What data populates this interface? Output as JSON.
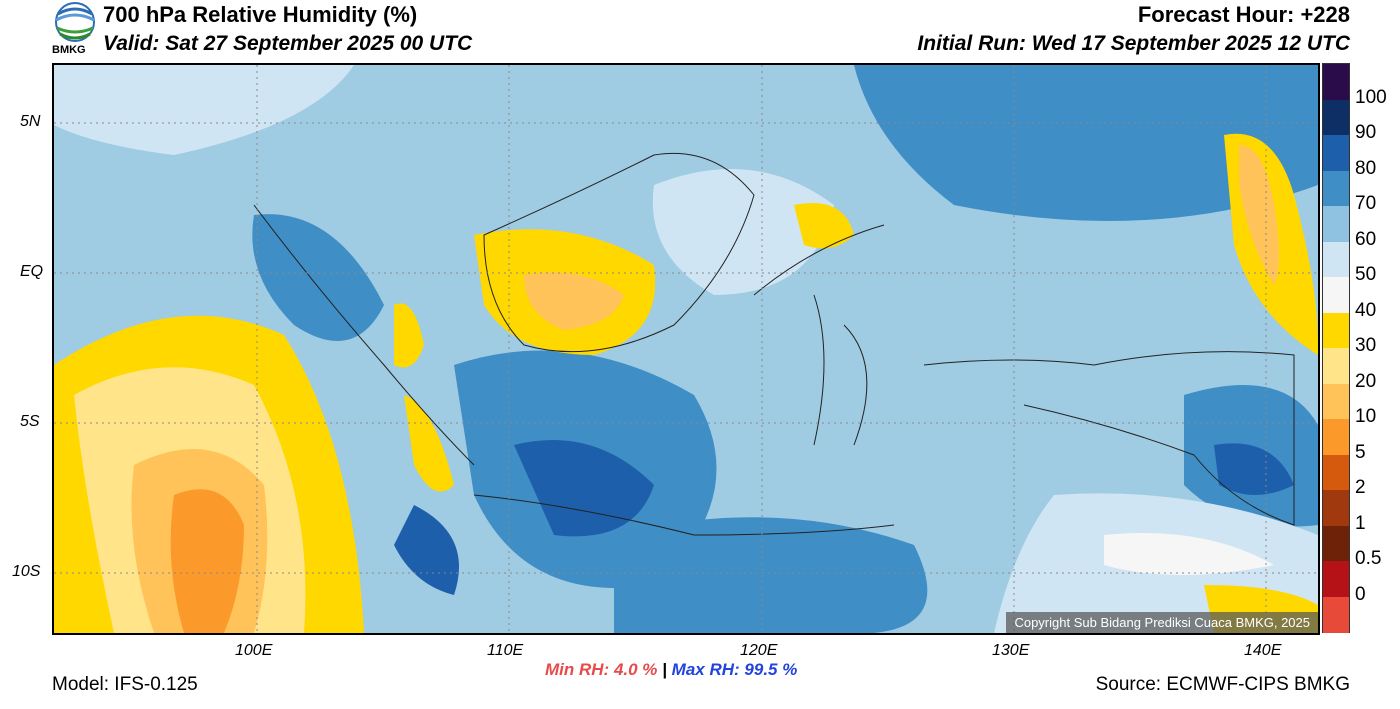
{
  "header": {
    "title": "700 hPa Relative Humidity (%)",
    "valid": "Valid: Sat 27 September 2025 00 UTC",
    "forecast_hour": "Forecast Hour: +228",
    "initial_run": "Initial Run: Wed 17 September 2025 12 UTC",
    "logo_text": "BMKG"
  },
  "map": {
    "lat_labels": [
      "5N",
      "EQ",
      "5S",
      "10S"
    ],
    "lon_labels": [
      "100E",
      "110E",
      "120E",
      "130E",
      "140E"
    ],
    "copyright": "Copyright Sub Bidang Prediksi Cuaca BMKG, 2025"
  },
  "legend": {
    "labels": [
      "100",
      "90",
      "80",
      "70",
      "60",
      "50",
      "40",
      "30",
      "20",
      "10",
      "5",
      "2",
      "1",
      "0.5",
      "0"
    ],
    "colors": [
      "#2b0c4a",
      "#0d2f66",
      "#1e5fab",
      "#3f8ec6",
      "#8fc2e1",
      "#cfe5f3",
      "#f6f6f6",
      "#ffd800",
      "#ffe48a",
      "#ffc35a",
      "#fb9a2a",
      "#d65a0e",
      "#a03a0e",
      "#6e2208",
      "#b51218",
      "#e84a3a"
    ]
  },
  "stats": {
    "min_label": "Min RH:",
    "min_value": "4.0 %",
    "separator": "|",
    "max_label": "Max RH:",
    "max_value": "99.5 %",
    "min_color": "#e84a4a",
    "max_color": "#2244dd"
  },
  "footer": {
    "model": "Model: IFS-0.125",
    "source": "Source: ECMWF-CIPS BMKG"
  }
}
